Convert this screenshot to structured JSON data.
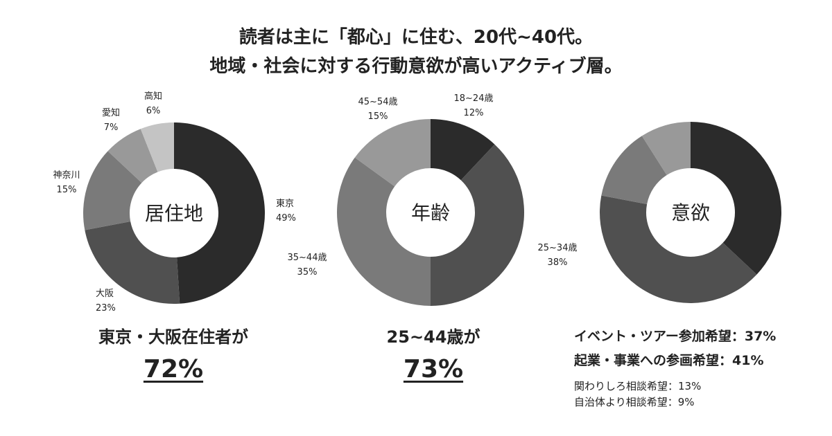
{
  "headline": {
    "line1": "読者は主に「都心」に住む、20代~40代。",
    "line2": "地域・社会に対する行動意欲が高いアクティブ層。"
  },
  "chart_data": [
    {
      "type": "pie",
      "center_label": "居住地",
      "slices": [
        {
          "name": "東京",
          "value": 49,
          "label": "49%",
          "color": "#2b2b2b"
        },
        {
          "name": "大阪",
          "value": 23,
          "label": "23%",
          "color": "#505050"
        },
        {
          "name": "神奈川",
          "value": 15,
          "label": "15%",
          "color": "#7a7a7a"
        },
        {
          "name": "愛知",
          "value": 7,
          "label": "7%",
          "color": "#999999"
        },
        {
          "name": "高知",
          "value": 6,
          "label": "6%",
          "color": "#c4c4c4"
        }
      ]
    },
    {
      "type": "pie",
      "center_label": "年齢",
      "slices": [
        {
          "name": "18~24歳",
          "value": 12,
          "label": "12%",
          "color": "#2b2b2b"
        },
        {
          "name": "25~34歳",
          "value": 38,
          "label": "38%",
          "color": "#505050"
        },
        {
          "name": "35~44歳",
          "value": 35,
          "label": "35%",
          "color": "#7a7a7a"
        },
        {
          "name": "45~54歳",
          "value": 15,
          "label": "15%",
          "color": "#999999"
        }
      ]
    },
    {
      "type": "pie",
      "center_label": "意欲",
      "slices": [
        {
          "name": "イベント・ツアー参加希望",
          "value": 37,
          "label": "37%",
          "color": "#2b2b2b"
        },
        {
          "name": "起業・事業への参画希望",
          "value": 41,
          "label": "41%",
          "color": "#505050"
        },
        {
          "name": "関わりしろ相談希望",
          "value": 13,
          "label": "13%",
          "color": "#7a7a7a"
        },
        {
          "name": "自治体より相談希望",
          "value": 9,
          "label": "9%",
          "color": "#999999"
        }
      ]
    }
  ],
  "summaries": {
    "residence": {
      "text": "東京・大阪在住者が",
      "value": "72%"
    },
    "age": {
      "text": "25~44歳が",
      "value": "73%"
    }
  },
  "motivation": {
    "main": [
      "イベント・ツアー参加希望：37%",
      "起業・事業への参画希望：41%"
    ],
    "sub": [
      "関わりしろ相談希望：13%",
      "自治体より相談希望：9%"
    ]
  }
}
